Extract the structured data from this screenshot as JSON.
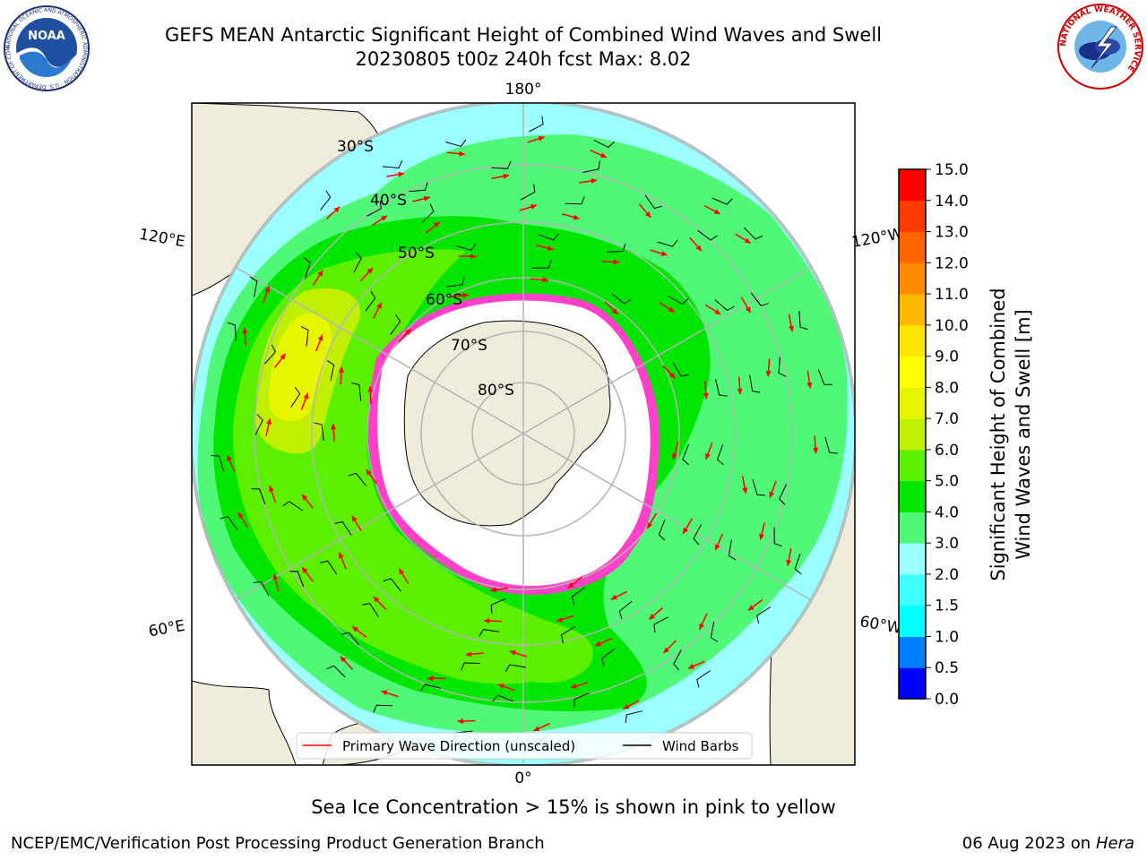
{
  "header": {
    "title_line1": "GEFS MEAN Antarctic Significant Height of Combined Wind Waves and Swell",
    "title_line2": "20230805 t00z 240h fcst   Max: 8.02"
  },
  "logos": {
    "left": {
      "name": "noaa-logo",
      "text": "NOAA",
      "ring_text": "NATIONAL OCEANIC AND ATMOSPHERIC ADMINISTRATION · U.S. DEPARTMENT OF COMMERCE"
    },
    "right": {
      "name": "nws-logo",
      "ring_text": "NATIONAL WEATHER SERVICE"
    }
  },
  "map": {
    "projection": "south-polar-stereographic",
    "longitude_labels": {
      "top": "180°",
      "bottom": "0°",
      "upper_left": "120°E",
      "upper_right": "120°W",
      "lower_left": "60°E",
      "lower_right": "60°W"
    },
    "latitude_labels": [
      "30°S",
      "40°S",
      "50°S",
      "60°S",
      "70°S",
      "80°S"
    ],
    "colors": {
      "land": "#efecdc",
      "coast": "#000000",
      "grid": "#b4b4b4",
      "wave_arrow": "#ff0000",
      "wind_barb": "#000000",
      "sea_ice": "#ff40c8"
    }
  },
  "legend": {
    "entries": [
      {
        "label": "Primary Wave Direction (unscaled)",
        "color": "#ff0000"
      },
      {
        "label": "Wind Barbs",
        "color": "#000000"
      }
    ]
  },
  "colorbar": {
    "label_line1": "Significant Height of Combined",
    "label_line2": "Wind Waves and Swell [m]",
    "ticks": [
      "0.0",
      "0.5",
      "1.0",
      "1.5",
      "2.0",
      "3.0",
      "4.0",
      "5.0",
      "6.0",
      "7.0",
      "8.0",
      "9.0",
      "10.0",
      "11.0",
      "12.0",
      "13.0",
      "14.0",
      "15.0"
    ],
    "colors": [
      "#0000ff",
      "#0080ff",
      "#00ffff",
      "#40ffff",
      "#9cffff",
      "#50f878",
      "#00e600",
      "#5cf000",
      "#c0f000",
      "#e6f500",
      "#ffff00",
      "#ffe600",
      "#ffb900",
      "#ff8c00",
      "#ff6400",
      "#ff3c00",
      "#ff0000"
    ]
  },
  "footer": {
    "caption": "Sea Ice Concentration > 15% is shown in pink to yellow",
    "left": "NCEP/EMC/Verification Post Processing Product Generation Branch",
    "date": "06 Aug 2023 on",
    "system": "Hera"
  }
}
